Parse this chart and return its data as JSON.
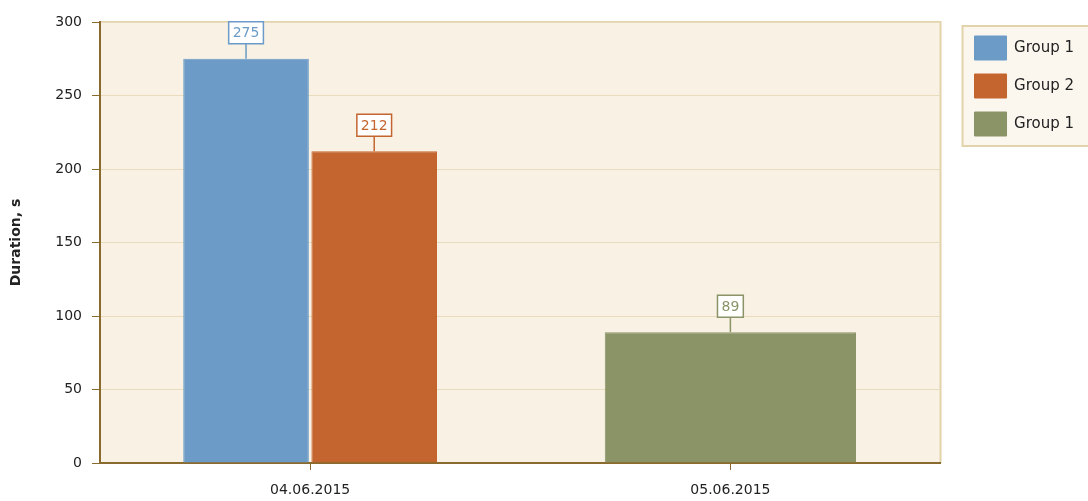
{
  "chart_data": {
    "type": "bar",
    "ylabel": "Duration, s",
    "categories": [
      "04.06.2015",
      "05.06.2015"
    ],
    "series": [
      {
        "name": "Group 1",
        "color": "#6b9bc6",
        "values": [
          275,
          null
        ]
      },
      {
        "name": "Group 2",
        "color": "#c4652f",
        "values": [
          212,
          null
        ]
      },
      {
        "name": "Group 1",
        "color": "#8a9467",
        "values": [
          null,
          89
        ]
      }
    ],
    "ylim": [
      0,
      300
    ],
    "yticks": [
      0,
      50,
      100,
      150,
      200,
      250,
      300
    ],
    "grid": "y",
    "legend": "top right",
    "data_labels": true
  }
}
